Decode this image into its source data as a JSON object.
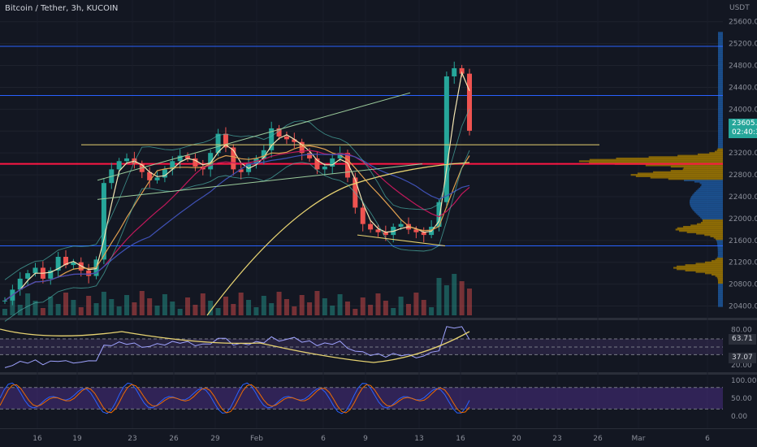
{
  "header": {
    "title": "Bitcoin / Tether, 3h, KUCOIN",
    "currency": "USDT"
  },
  "price_tag": {
    "price": "23605.9",
    "countdown": "02:40:32"
  },
  "rsi_tags": {
    "upper": "63.71",
    "lower": "37.07"
  },
  "colors": {
    "bg": "#131722",
    "up": "#26a69a",
    "down": "#ef5350",
    "blue_line": "#2962ff",
    "red_line": "#ff1744",
    "yellow_line": "#e6d271",
    "rsi_band": "#7e57c2",
    "stoch_band": "#673ab7"
  },
  "chart_data": [
    {
      "type": "candlestick",
      "title": "Bitcoin / Tether, 3h, KUCOIN",
      "y_ticks": [
        20400,
        20800,
        21200,
        21600,
        22000,
        22400,
        22800,
        23200,
        23600,
        24000,
        24400,
        24800,
        25200,
        25600
      ],
      "ylim": [
        20200,
        25700
      ],
      "x_ticks": [
        "16",
        "19",
        "23",
        "26",
        "29",
        "Feb",
        "6",
        "9",
        "13",
        "16",
        "20",
        "23",
        "26",
        "Mar",
        "6"
      ],
      "horizontal_levels": [
        {
          "value": 25150,
          "color": "blue"
        },
        {
          "value": 24250,
          "color": "blue"
        },
        {
          "value": 23000,
          "color": "red"
        },
        {
          "value": 21500,
          "color": "blue"
        }
      ],
      "last_price": 23605.9,
      "close_series": [
        20500,
        20700,
        20900,
        21000,
        21100,
        20900,
        21050,
        21300,
        21150,
        21200,
        21050,
        20950,
        21250,
        22650,
        22900,
        23050,
        23100,
        23000,
        22850,
        22700,
        22750,
        22900,
        23050,
        23150,
        23100,
        22950,
        22900,
        23200,
        23550,
        23300,
        22900,
        22850,
        23000,
        23100,
        23250,
        23650,
        23500,
        23450,
        23400,
        23200,
        23100,
        22900,
        22950,
        23100,
        23200,
        22750,
        22200,
        21900,
        21800,
        21750,
        21700,
        21850,
        21900,
        21800,
        21750,
        21700,
        21850,
        22300,
        24600,
        24750,
        24650,
        23605.9
      ],
      "volume_profile_peaks": [
        23050,
        22800,
        21800,
        21100
      ]
    },
    {
      "type": "line",
      "name": "RSI",
      "y_ticks": [
        20,
        40,
        60,
        80
      ],
      "ylim": [
        10,
        90
      ],
      "band": [
        37.07,
        63.71
      ],
      "last_value": 63.71
    },
    {
      "type": "line",
      "name": "Stoch",
      "y_ticks": [
        "0.00",
        "50.00",
        "100.00"
      ],
      "ylim": [
        0,
        100
      ]
    }
  ]
}
